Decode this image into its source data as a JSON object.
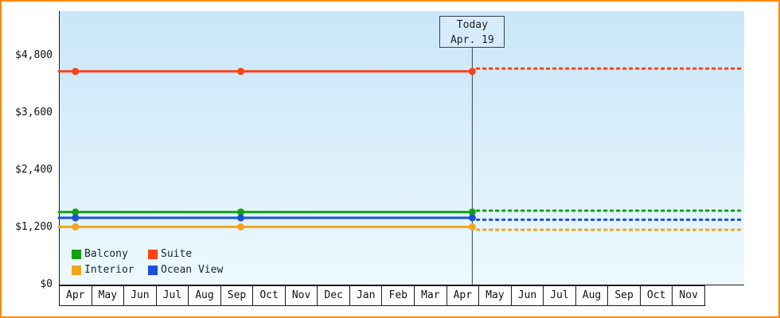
{
  "chart_data": {
    "type": "line",
    "title": "",
    "grid": false,
    "legend_position": "bottom-left",
    "today": {
      "line1": "Today",
      "line2": "Apr. 19"
    },
    "today_month_index": 12,
    "x_months": [
      "Apr",
      "May",
      "Jun",
      "Jul",
      "Aug",
      "Sep",
      "Oct",
      "Nov",
      "Dec",
      "Jan",
      "Feb",
      "Mar",
      "Apr",
      "May",
      "Jun",
      "Jul",
      "Aug",
      "Sep",
      "Oct",
      "Nov"
    ],
    "y_ticks": [
      {
        "label": "$0",
        "value": 0
      },
      {
        "label": "$1,200",
        "value": 1200
      },
      {
        "label": "$2,400",
        "value": 2400
      },
      {
        "label": "$3,600",
        "value": 3600
      },
      {
        "label": "$4,800",
        "value": 4800
      }
    ],
    "ylim": [
      0,
      5760
    ],
    "series": [
      {
        "name": "Suite",
        "color": "#fc4116",
        "history_value": 4470,
        "forecast_value": 4530,
        "marker_month_indices": [
          0,
          5,
          12
        ]
      },
      {
        "name": "Balcony",
        "color": "#14a014",
        "history_value": 1520,
        "forecast_value": 1550,
        "marker_month_indices": [
          0,
          5,
          12
        ]
      },
      {
        "name": "Ocean View",
        "color": "#1d4fdd",
        "history_value": 1400,
        "forecast_value": 1360,
        "marker_month_indices": [
          0,
          5,
          12
        ]
      },
      {
        "name": "Interior",
        "color": "#f2a51d",
        "history_value": 1210,
        "forecast_value": 1150,
        "marker_month_indices": [
          0,
          5,
          12
        ]
      }
    ],
    "legend": [
      {
        "label": "Balcony",
        "color": "#14a014"
      },
      {
        "label": "Suite",
        "color": "#fc4116"
      },
      {
        "label": "Interior",
        "color": "#f2a51d"
      },
      {
        "label": "Ocean View",
        "color": "#1d4fdd"
      }
    ],
    "accent_colors": {
      "frame_border": "#ff8a00",
      "plot_background_top": "#c9e6f8",
      "plot_background_bottom": "#edf9fe"
    }
  }
}
